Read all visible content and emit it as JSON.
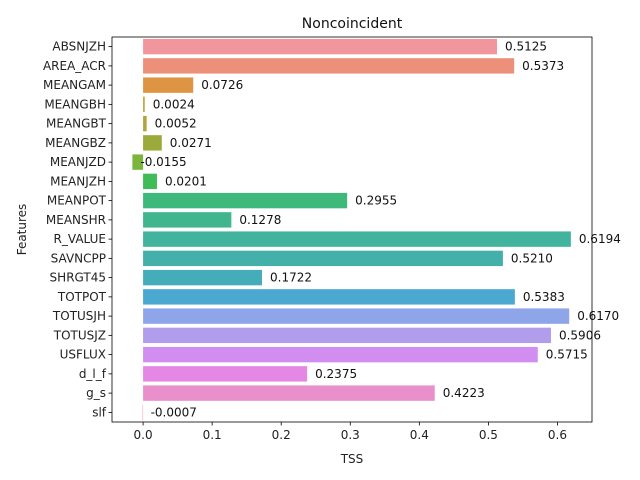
{
  "chart_data": {
    "type": "bar",
    "orientation": "horizontal",
    "title": "Noncoincident",
    "xlabel": "TSS",
    "ylabel": "Features",
    "xlim": [
      -0.045,
      0.65
    ],
    "xticks": [
      0.0,
      0.1,
      0.2,
      0.3,
      0.4,
      0.5,
      0.6
    ],
    "xtick_labels": [
      "0.0",
      "0.1",
      "0.2",
      "0.3",
      "0.4",
      "0.5",
      "0.6"
    ],
    "grid": false,
    "legend": "none",
    "categories": [
      "ABSNJZH",
      "AREA_ACR",
      "MEANGAM",
      "MEANGBH",
      "MEANGBT",
      "MEANGBZ",
      "MEANJZD",
      "MEANJZH",
      "MEANPOT",
      "MEANSHR",
      "R_VALUE",
      "SAVNCPP",
      "SHRGT45",
      "TOTPOT",
      "TOTUSJH",
      "TOTUSJZ",
      "USFLUX",
      "d_l_f",
      "g_s",
      "slf"
    ],
    "values": [
      0.5125,
      0.5373,
      0.0726,
      0.0024,
      0.0052,
      0.0271,
      -0.0155,
      0.0201,
      0.2955,
      0.1278,
      0.6194,
      0.521,
      0.1722,
      0.5383,
      0.617,
      0.5906,
      0.5715,
      0.2375,
      0.4223,
      -0.0007
    ],
    "value_labels": [
      "0.5125",
      "0.5373",
      "0.0726",
      "0.0024",
      "0.0052",
      "0.0271",
      "-0.0155",
      "0.0201",
      "0.2955",
      "0.1278",
      "0.6194",
      "0.5210",
      "0.1722",
      "0.5383",
      "0.6170",
      "0.5906",
      "0.5715",
      "0.2375",
      "0.4223",
      "-0.0007"
    ],
    "colors": [
      "#f0969c",
      "#ec907a",
      "#de9442",
      "#c4a03f",
      "#b0a63d",
      "#9aab3c",
      "#7ab53c",
      "#3fbb57",
      "#3fb87c",
      "#40b58e",
      "#42b39d",
      "#43b0aa",
      "#45adb9",
      "#4aa8d1",
      "#8fa5ea",
      "#b29ded",
      "#d18ef0",
      "#e587e5",
      "#e990cc",
      "#ef99b1"
    ]
  }
}
